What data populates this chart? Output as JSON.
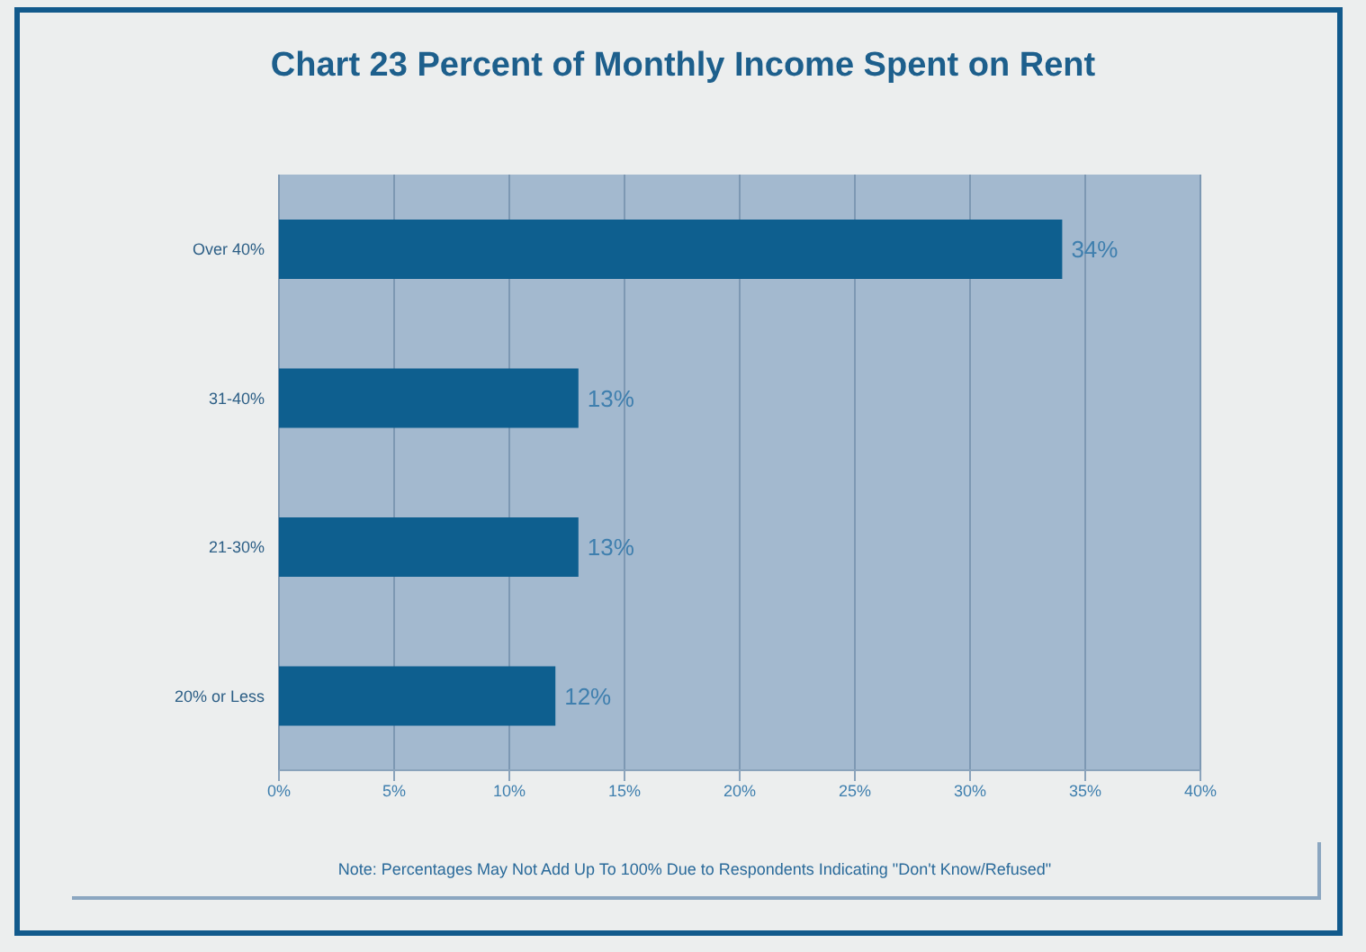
{
  "chart_data": {
    "type": "bar",
    "orientation": "horizontal",
    "title": "Chart 23 Percent of Monthly Income Spent on Rent",
    "categories": [
      "Over 40%",
      "31-40%",
      "21-30%",
      "20% or Less"
    ],
    "values": [
      34,
      13,
      13,
      12
    ],
    "value_labels": [
      "34%",
      "13%",
      "13%",
      "12%"
    ],
    "color": "#0e5f8f",
    "xlim": [
      0,
      40
    ],
    "xticks": [
      {
        "value": 0,
        "label": "0%"
      },
      {
        "value": 5,
        "label": "5%"
      },
      {
        "value": 10,
        "label": "10%"
      },
      {
        "value": 15,
        "label": "15%"
      },
      {
        "value": 20,
        "label": "20%"
      },
      {
        "value": 25,
        "label": "25%"
      },
      {
        "value": 30,
        "label": "30%"
      },
      {
        "value": 35,
        "label": "35%"
      },
      {
        "value": 40,
        "label": "40%"
      }
    ],
    "grid": "x",
    "annotations": [
      "Note: Percentages May Not Add Up To 100% Due to Respondents Indicating \"Don't Know/Refused\""
    ]
  }
}
